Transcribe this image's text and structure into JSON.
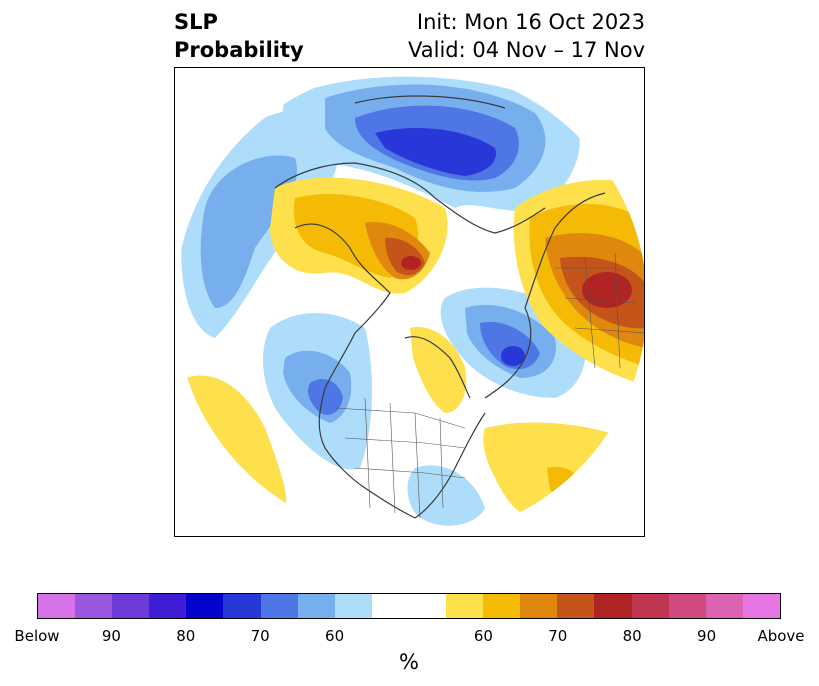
{
  "title": {
    "left_line1": "SLP",
    "left_line2": "Probability",
    "right_line1": "Init: Mon 16 Oct 2023",
    "right_line2": "Valid: 04 Nov – 17 Nov"
  },
  "colorbar": {
    "unit_label": "%",
    "colors": [
      "#d672e8",
      "#9b56e0",
      "#6c3bd8",
      "#3f1dd4",
      "#0404cc",
      "#2838d8",
      "#4e76e4",
      "#76aeee",
      "#aedcfb",
      "#ffffff",
      "#ffffff",
      "#fde04c",
      "#f4ba06",
      "#e0880e",
      "#c5541a",
      "#b02424",
      "#c03550",
      "#cf4a7e",
      "#dc62b2",
      "#e676e4"
    ],
    "tick_labels": [
      "Below",
      "90",
      "80",
      "70",
      "60",
      "60",
      "70",
      "80",
      "90",
      "Above"
    ]
  },
  "map": {
    "projection": "north-polar-stereographic",
    "regions": [
      {
        "name": "eastern-pacific-gulf-of-alaska-low",
        "category": "below",
        "peak_probability": "70-75"
      },
      {
        "name": "north-atlantic-low",
        "category": "below",
        "peak_probability": "70-75"
      },
      {
        "name": "arctic-eurasian-low",
        "category": "below",
        "peak_probability": "75-80"
      },
      {
        "name": "eastern-siberia-high",
        "category": "above",
        "peak_probability": "75-80"
      },
      {
        "name": "west-siberia-high",
        "category": "above",
        "peak_probability": "75-80"
      },
      {
        "name": "hudson-bay-high",
        "category": "above",
        "peak_probability": "60-65"
      },
      {
        "name": "subtropical-pacific-high",
        "category": "above",
        "peak_probability": "60-65"
      },
      {
        "name": "subtropical-atlantic-high",
        "category": "above",
        "peak_probability": "60-70"
      }
    ]
  }
}
